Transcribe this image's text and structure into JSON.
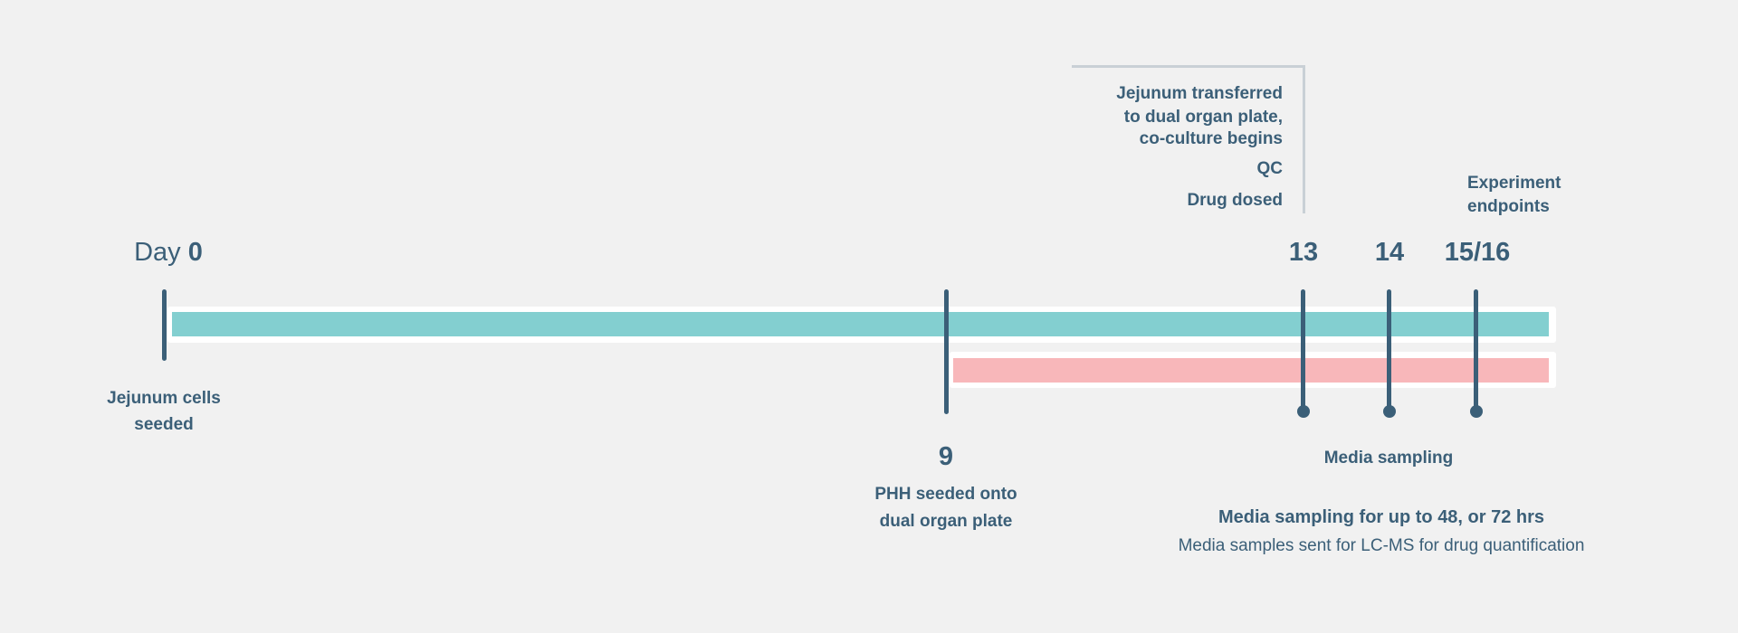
{
  "colors": {
    "text": "#3b5f78",
    "jejunum_bar": "#83cfd0",
    "phh_bar": "#f8b7ba",
    "bracket": "#c9d0d6",
    "background": "#f1f1f1"
  },
  "day0": {
    "prefix": "Day",
    "value": "0",
    "label_lines": [
      "Jejunum cells",
      "seeded"
    ]
  },
  "day9": {
    "value": "9",
    "label_lines": [
      "PHH seeded onto",
      "dual organ plate"
    ]
  },
  "day13": {
    "value": "13",
    "label_lines": [
      "Jejunum transferred",
      "to dual organ plate,",
      "co-culture begins",
      "QC",
      "Drug dosed"
    ]
  },
  "day14": {
    "value": "14"
  },
  "day15_16": {
    "value": "15/16",
    "label_lines": [
      "Experiment",
      "endpoints"
    ]
  },
  "media_sampling": "Media sampling",
  "footer": {
    "title": "Media sampling for up to 48, or 72 hrs",
    "subtitle": "Media samples sent for LC-MS for drug quantification"
  }
}
